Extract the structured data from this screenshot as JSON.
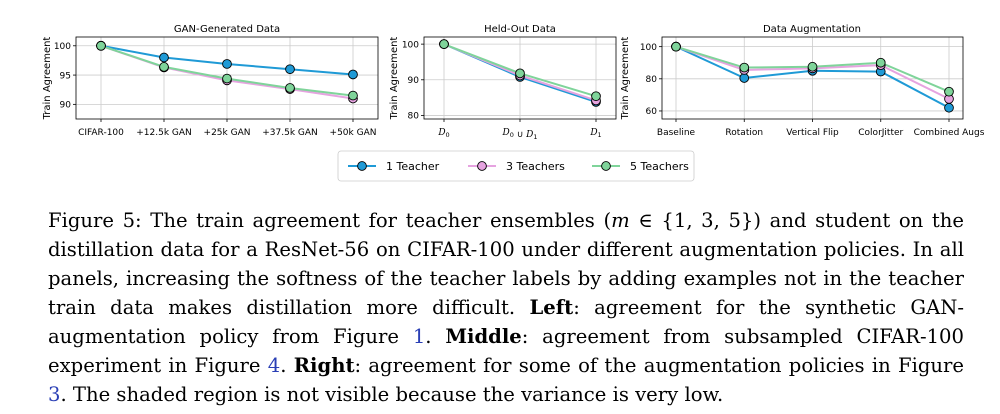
{
  "colors": {
    "teacher1": "#1f9ad6",
    "teacher3": "#e6a3e0",
    "teacher5": "#7fd49a",
    "grid": "#cccccc",
    "ref": "#2a3fb5"
  },
  "legend": {
    "placement": "bottom-center",
    "entries": [
      "1 Teacher",
      "3 Teachers",
      "5 Teachers"
    ]
  },
  "chart_data": [
    {
      "type": "line",
      "title": "GAN-Generated Data",
      "xlabel": "",
      "ylabel": "Train Agreement",
      "categories": [
        "CIFAR-100",
        "+12.5k GAN",
        "+25k GAN",
        "+37.5k GAN",
        "+50k GAN"
      ],
      "yticks": [
        "90",
        "95",
        "100"
      ],
      "ylim": [
        87.5,
        101.5
      ],
      "grid": true,
      "series": [
        {
          "name": "1 Teacher",
          "values": [
            100,
            98.0,
            96.9,
            96.0,
            95.1
          ]
        },
        {
          "name": "3 Teachers",
          "values": [
            100,
            96.3,
            94.1,
            92.6,
            91.0
          ]
        },
        {
          "name": "5 Teachers",
          "values": [
            100,
            96.4,
            94.4,
            92.8,
            91.5
          ]
        }
      ]
    },
    {
      "type": "line",
      "title": "Held-Out Data",
      "xlabel": "",
      "ylabel": "Train Agreement",
      "categories": [
        "D_0",
        "D_0 ∪ D_1",
        "D_1"
      ],
      "yticks": [
        "80",
        "90",
        "100"
      ],
      "ylim": [
        79,
        102
      ],
      "grid": true,
      "series": [
        {
          "name": "1 Teacher",
          "values": [
            100,
            90.8,
            83.8
          ]
        },
        {
          "name": "3 Teachers",
          "values": [
            100,
            91.2,
            84.2
          ]
        },
        {
          "name": "5 Teachers",
          "values": [
            100,
            91.8,
            85.4
          ]
        }
      ]
    },
    {
      "type": "line",
      "title": "Data Augmentation",
      "xlabel": "",
      "ylabel": "Train Agreement",
      "categories": [
        "Baseline",
        "Rotation",
        "Vertical Flip",
        "ColorJitter",
        "Combined Augs"
      ],
      "yticks": [
        "60",
        "80",
        "100"
      ],
      "ylim": [
        55,
        106
      ],
      "grid": true,
      "series": [
        {
          "name": "1 Teacher",
          "values": [
            100,
            80.5,
            85.0,
            84.5,
            62.0
          ]
        },
        {
          "name": "3 Teachers",
          "values": [
            100,
            85.5,
            86.5,
            88.5,
            67.5
          ]
        },
        {
          "name": "5 Teachers",
          "values": [
            100,
            87.0,
            87.5,
            90.0,
            72.0
          ]
        }
      ]
    }
  ],
  "caption": {
    "label": "Figure 5:",
    "part1": "The train agreement for teacher ensembles (",
    "math_var": "m",
    "math_set": " ∈ {1, 3, 5}",
    "part2": ") and student on the distillation data for a ResNet-56 on CIFAR-100 under different augmentation policies. In all panels, increasing the softness of the teacher labels by adding examples not in the teacher train data makes distillation more difficult. ",
    "left_label": "Left",
    "left_text": ": agreement for the synthetic GAN-augmentation policy from Figure ",
    "left_ref": "1",
    "left_end": ". ",
    "middle_label": "Middle",
    "middle_text": ": agreement from subsampled CIFAR-100 experiment in Figure ",
    "middle_ref": "4",
    "middle_end": ". ",
    "right_label": "Right",
    "right_text": ": agreement for some of the augmentation policies in Figure ",
    "right_ref": "3",
    "right_end": ". The shaded region is not visible because the variance is very low."
  }
}
